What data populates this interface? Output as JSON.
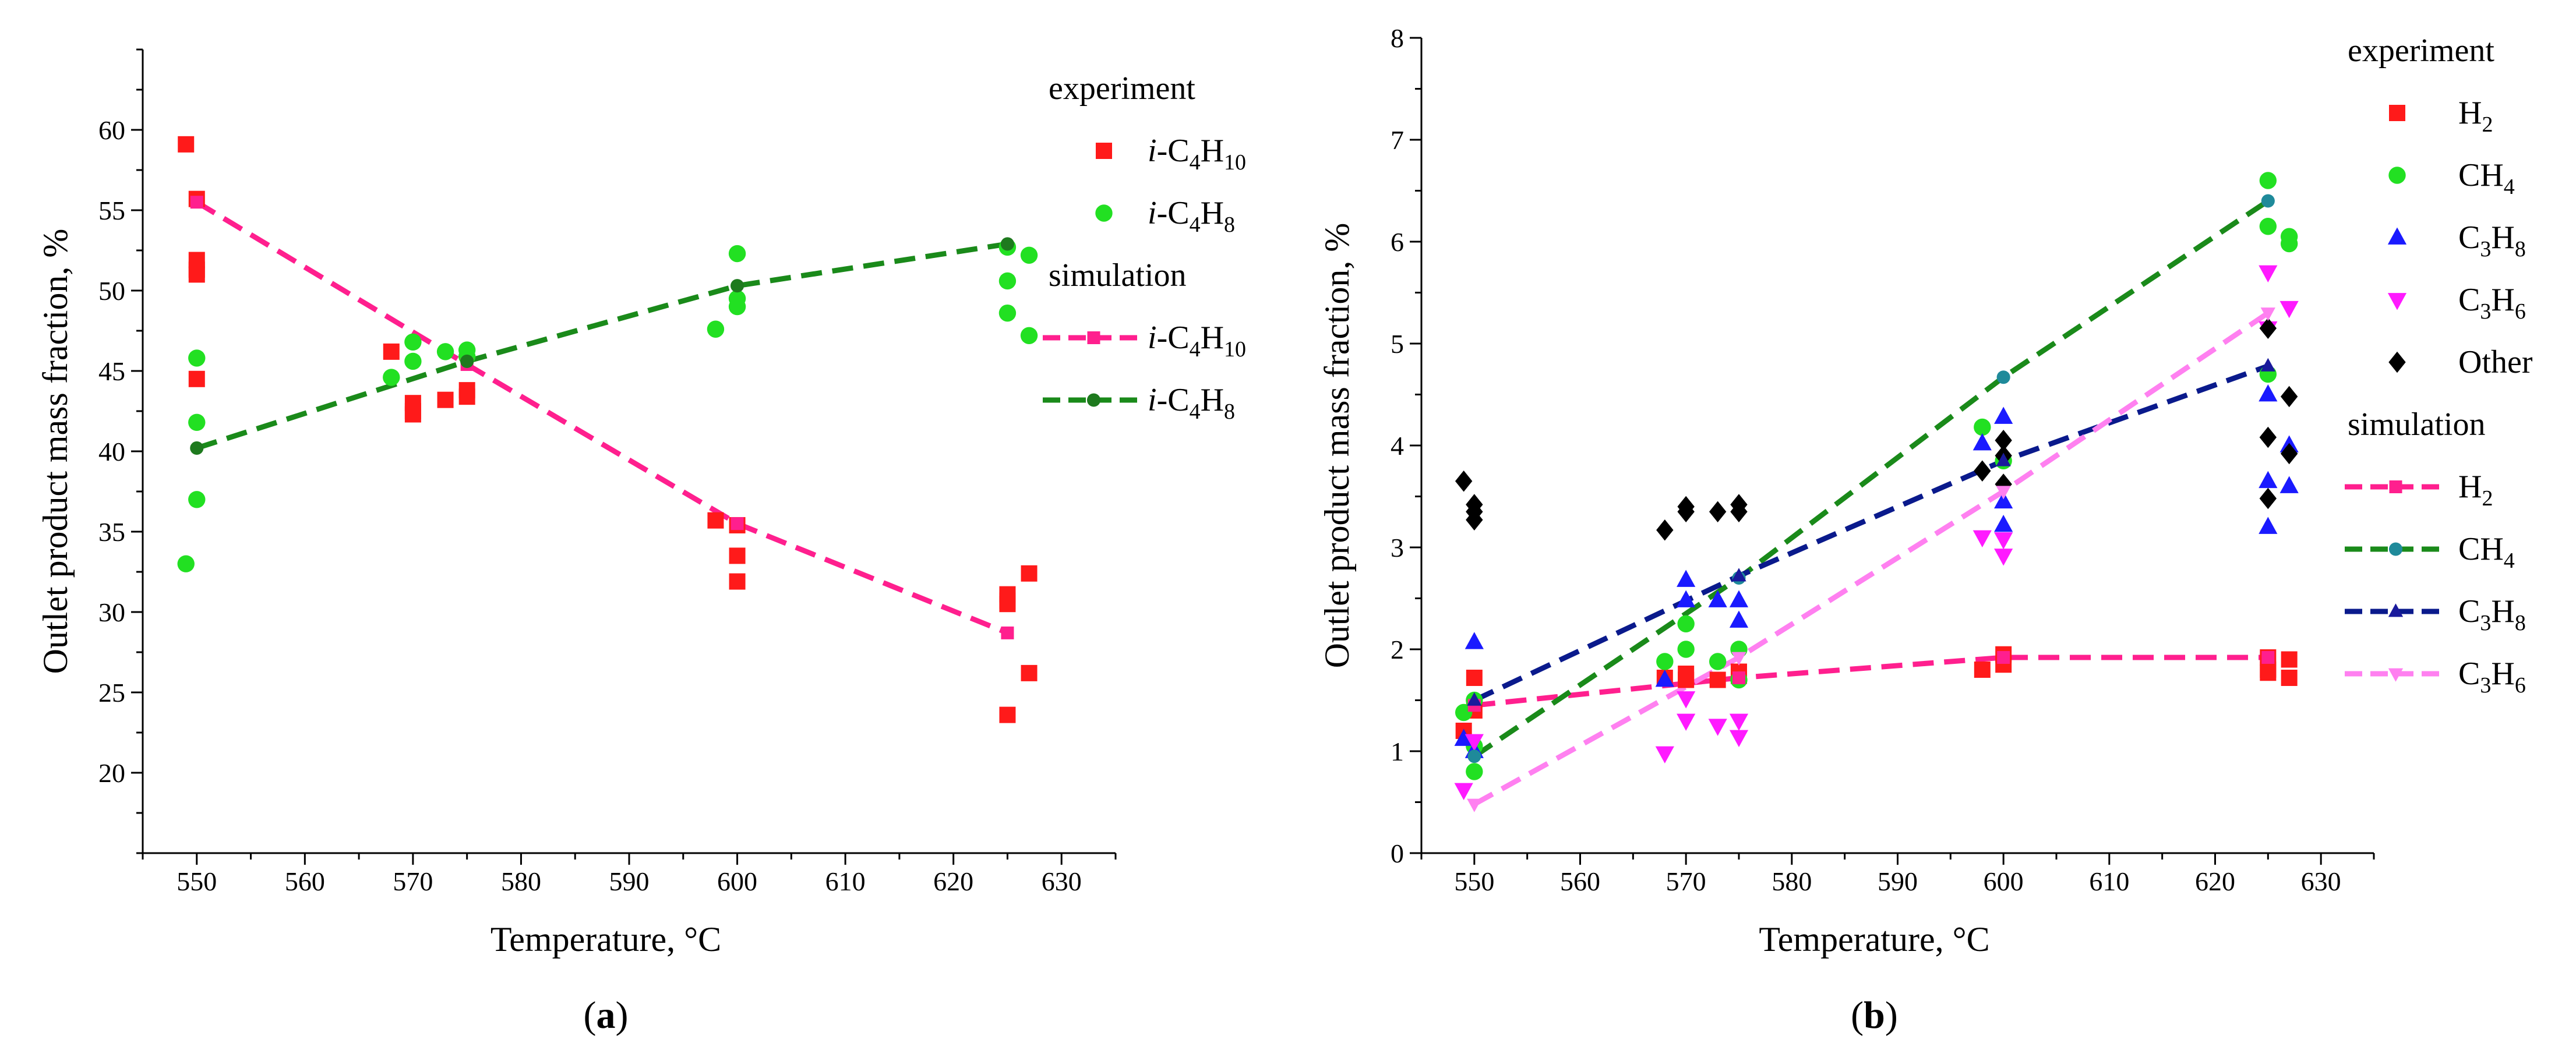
{
  "chart_data": [
    {
      "type": "scatter",
      "panel_label": "a",
      "xlabel": "Temperature, °C",
      "ylabel": "Outlet product mass fraction, %",
      "xlim": [
        545,
        635
      ],
      "ylim": [
        15,
        65
      ],
      "xticks": [
        550,
        560,
        570,
        580,
        590,
        600,
        610,
        620,
        630
      ],
      "yticks": [
        20,
        25,
        30,
        35,
        40,
        45,
        50,
        55,
        60
      ],
      "grid": false,
      "legend_position": "top-right",
      "legend_groups": [
        "experiment",
        "simulation"
      ],
      "experiment": [
        {
          "name": "i-C4H10",
          "label_prefix": "i-C",
          "sub1": "4",
          "mid": "H",
          "sub2": "10",
          "color": "#ff1a1a",
          "marker": "square",
          "points": [
            [
              549,
              59.1
            ],
            [
              550,
              55.7
            ],
            [
              550,
              51.9
            ],
            [
              550,
              51.3
            ],
            [
              550,
              51.0
            ],
            [
              550,
              44.5
            ],
            [
              568,
              46.2
            ],
            [
              570,
              43.0
            ],
            [
              570,
              42.5
            ],
            [
              570,
              42.3
            ],
            [
              573,
              43.2
            ],
            [
              575,
              43.8
            ],
            [
              575,
              43.4
            ],
            [
              598,
              35.7
            ],
            [
              600,
              35.4
            ],
            [
              600,
              33.5
            ],
            [
              600,
              31.9
            ],
            [
              625,
              31.1
            ],
            [
              625,
              30.7
            ],
            [
              625,
              30.5
            ],
            [
              625,
              23.6
            ],
            [
              627,
              32.4
            ],
            [
              627,
              26.2
            ]
          ]
        },
        {
          "name": "i-C4H8",
          "label_prefix": "i-C",
          "sub1": "4",
          "mid": "H",
          "sub2": "8",
          "color": "#22e022",
          "marker": "circle",
          "points": [
            [
              549,
              33.0
            ],
            [
              550,
              45.8
            ],
            [
              550,
              41.8
            ],
            [
              550,
              37.0
            ],
            [
              568,
              44.6
            ],
            [
              570,
              46.8
            ],
            [
              570,
              45.6
            ],
            [
              573,
              46.2
            ],
            [
              575,
              46.3
            ],
            [
              575,
              45.9
            ],
            [
              598,
              47.6
            ],
            [
              600,
              52.3
            ],
            [
              600,
              49.5
            ],
            [
              600,
              49.0
            ],
            [
              625,
              52.7
            ],
            [
              625,
              50.6
            ],
            [
              625,
              48.6
            ],
            [
              627,
              52.2
            ],
            [
              627,
              47.2
            ]
          ]
        }
      ],
      "simulation": [
        {
          "name": "i-C4H10",
          "label_prefix": "i-C",
          "sub1": "4",
          "mid": "H",
          "sub2": "10",
          "color": "#ff1f8e",
          "marker_color": "#ff1f8e",
          "marker": "square",
          "x": [
            550,
            575,
            600,
            625
          ],
          "y": [
            55.5,
            45.4,
            35.5,
            28.7
          ]
        },
        {
          "name": "i-C4H8",
          "label_prefix": "i-C",
          "sub1": "4",
          "mid": "H",
          "sub2": "8",
          "color": "#1a8a1a",
          "marker_color": "#1e7a1e",
          "marker": "circle",
          "x": [
            550,
            575,
            600,
            625
          ],
          "y": [
            40.2,
            45.6,
            50.3,
            52.9
          ]
        }
      ]
    },
    {
      "type": "scatter",
      "panel_label": "b",
      "xlabel": "Temperature, °C",
      "ylabel": "Outlet product mass fraction, %",
      "xlim": [
        545,
        635
      ],
      "ylim": [
        0,
        8
      ],
      "xticks": [
        550,
        560,
        570,
        580,
        590,
        600,
        610,
        620,
        630
      ],
      "yticks": [
        0,
        1,
        2,
        3,
        4,
        5,
        6,
        7,
        8
      ],
      "grid": false,
      "legend_position": "top-right",
      "legend_groups": [
        "experiment",
        "simulation"
      ],
      "experiment": [
        {
          "name": "H2",
          "label_prefix": "",
          "sub1": "",
          "mid": "H",
          "sub2": "2",
          "color": "#ff1a1a",
          "marker": "square",
          "points": [
            [
              549,
              1.2
            ],
            [
              550,
              1.72
            ],
            [
              550,
              1.4
            ],
            [
              568,
              1.72
            ],
            [
              570,
              1.76
            ],
            [
              570,
              1.7
            ],
            [
              573,
              1.7
            ],
            [
              575,
              1.74
            ],
            [
              575,
              1.78
            ],
            [
              598,
              1.8
            ],
            [
              600,
              1.95
            ],
            [
              600,
              1.85
            ],
            [
              625,
              1.92
            ],
            [
              625,
              1.8
            ],
            [
              625,
              1.77
            ],
            [
              627,
              1.9
            ],
            [
              627,
              1.72
            ]
          ]
        },
        {
          "name": "CH4",
          "label_prefix": "",
          "sub1": "",
          "mid": "CH",
          "sub2": "4",
          "color": "#22e022",
          "marker": "circle",
          "points": [
            [
              549,
              1.38
            ],
            [
              550,
              1.5
            ],
            [
              550,
              1.05
            ],
            [
              550,
              0.8
            ],
            [
              568,
              1.88
            ],
            [
              570,
              2.25
            ],
            [
              570,
              2.0
            ],
            [
              573,
              1.88
            ],
            [
              575,
              2.0
            ],
            [
              575,
              1.7
            ],
            [
              598,
              4.18
            ],
            [
              600,
              3.85
            ],
            [
              625,
              6.6
            ],
            [
              625,
              6.15
            ],
            [
              625,
              4.7
            ],
            [
              627,
              6.05
            ],
            [
              627,
              5.98
            ]
          ]
        },
        {
          "name": "C3H8",
          "label_prefix": "C",
          "sub1": "3",
          "mid": "H",
          "sub2": "8",
          "color": "#1a1aff",
          "marker": "triangle-up",
          "points": [
            [
              549,
              1.12
            ],
            [
              550,
              2.07
            ],
            [
              550,
              1.0
            ],
            [
              568,
              1.7
            ],
            [
              570,
              2.68
            ],
            [
              570,
              2.48
            ],
            [
              573,
              2.48
            ],
            [
              575,
              2.48
            ],
            [
              575,
              2.28
            ],
            [
              598,
              4.02
            ],
            [
              600,
              4.28
            ],
            [
              600,
              3.45
            ],
            [
              600,
              3.22
            ],
            [
              625,
              4.5
            ],
            [
              625,
              3.65
            ],
            [
              625,
              3.2
            ],
            [
              627,
              4.0
            ],
            [
              627,
              3.6
            ]
          ]
        },
        {
          "name": "C3H6",
          "label_prefix": "C",
          "sub1": "3",
          "mid": "H",
          "sub2": "6",
          "color": "#ff1aff",
          "marker": "triangle-down",
          "points": [
            [
              549,
              0.62
            ],
            [
              550,
              1.1
            ],
            [
              568,
              0.98
            ],
            [
              570,
              1.52
            ],
            [
              570,
              1.3
            ],
            [
              573,
              1.25
            ],
            [
              575,
              1.3
            ],
            [
              575,
              1.14
            ],
            [
              598,
              3.1
            ],
            [
              600,
              3.08
            ],
            [
              600,
              2.92
            ],
            [
              625,
              5.7
            ],
            [
              625,
              5.15
            ],
            [
              627,
              5.35
            ]
          ]
        },
        {
          "name": "Other",
          "label_prefix": "",
          "sub1": "",
          "mid": "Other",
          "sub2": "",
          "color": "#000000",
          "marker": "diamond",
          "points": [
            [
              549,
              3.65
            ],
            [
              550,
              3.42
            ],
            [
              550,
              3.35
            ],
            [
              550,
              3.27
            ],
            [
              568,
              3.17
            ],
            [
              570,
              3.4
            ],
            [
              570,
              3.35
            ],
            [
              573,
              3.35
            ],
            [
              575,
              3.42
            ],
            [
              575,
              3.35
            ],
            [
              598,
              3.75
            ],
            [
              600,
              4.05
            ],
            [
              600,
              3.9
            ],
            [
              600,
              3.62
            ],
            [
              625,
              5.15
            ],
            [
              625,
              4.08
            ],
            [
              625,
              3.48
            ],
            [
              627,
              4.48
            ],
            [
              627,
              3.92
            ]
          ]
        }
      ],
      "simulation": [
        {
          "name": "H2",
          "label_prefix": "",
          "sub1": "",
          "mid": "H",
          "sub2": "2",
          "color": "#ff1f8e",
          "marker_color": "#ff1f8e",
          "marker": "square",
          "x": [
            550,
            575,
            600,
            625
          ],
          "y": [
            1.45,
            1.72,
            1.92,
            1.92
          ]
        },
        {
          "name": "CH4",
          "label_prefix": "",
          "sub1": "",
          "mid": "CH",
          "sub2": "4",
          "color": "#1a8a1a",
          "marker_color": "#1f8a9a",
          "marker": "circle",
          "x": [
            550,
            575,
            600,
            625
          ],
          "y": [
            0.95,
            2.7,
            4.67,
            6.4
          ]
        },
        {
          "name": "C3H8",
          "label_prefix": "C",
          "sub1": "3",
          "mid": "H",
          "sub2": "8",
          "color": "#0a1a8c",
          "marker_color": "#1a1a9c",
          "marker": "triangle-up",
          "x": [
            550,
            575,
            600,
            625
          ],
          "y": [
            1.5,
            2.72,
            3.85,
            4.78
          ]
        },
        {
          "name": "C3H6",
          "label_prefix": "C",
          "sub1": "3",
          "mid": "H",
          "sub2": "6",
          "color": "#ff80f0",
          "marker_color": "#ff80f0",
          "marker": "triangle-down",
          "x": [
            550,
            575,
            600,
            625
          ],
          "y": [
            0.48,
            1.92,
            3.55,
            5.3
          ]
        }
      ]
    }
  ]
}
